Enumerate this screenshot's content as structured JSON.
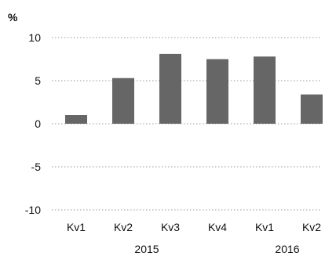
{
  "chart_data": {
    "type": "bar",
    "title": "",
    "unit_label": "%",
    "xlabel": "",
    "ylabel": "",
    "ylim": [
      -10,
      10
    ],
    "yticks": [
      10,
      5,
      0,
      -5,
      -10
    ],
    "ytick_labels": [
      "10",
      "5",
      "0",
      "-5",
      "-10"
    ],
    "grid": true,
    "legend": "none",
    "categories": [
      "Kv1",
      "Kv2",
      "Kv3",
      "Kv4",
      "Kv1",
      "Kv2"
    ],
    "groups": [
      {
        "label": "2015",
        "categories": [
          "Kv1",
          "Kv2",
          "Kv3",
          "Kv4"
        ]
      },
      {
        "label": "2016",
        "categories": [
          "Kv1",
          "Kv2"
        ]
      }
    ],
    "series": [
      {
        "values": [
          1.0,
          5.3,
          8.1,
          7.5,
          7.8,
          3.4
        ],
        "color": "#666666"
      }
    ]
  }
}
